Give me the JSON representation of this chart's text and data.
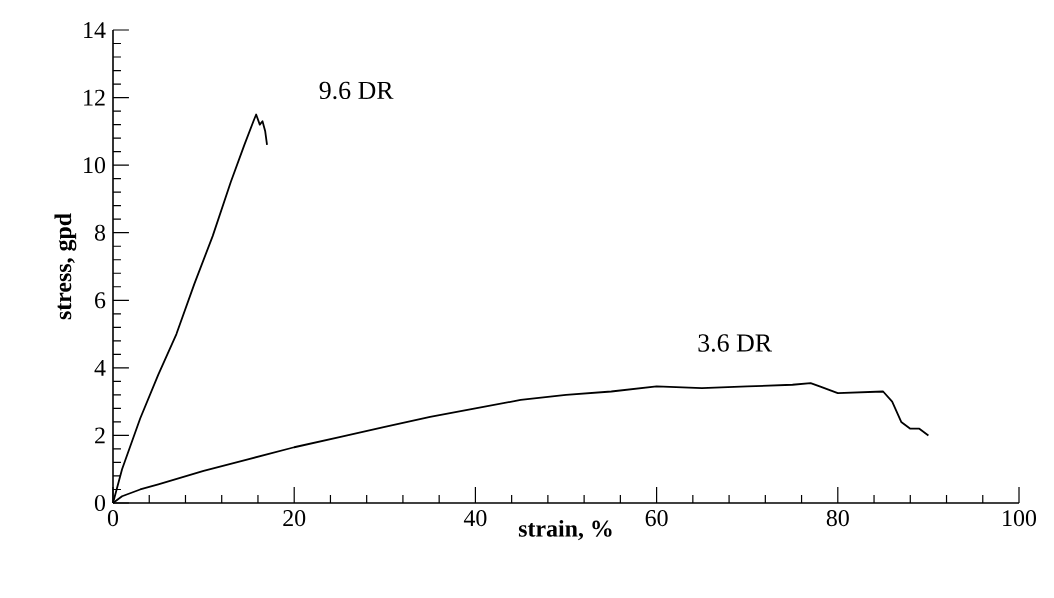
{
  "chart_data": {
    "type": "line",
    "xlabel": "strain, %",
    "ylabel": "stress, gpd",
    "xlim": [
      0,
      100
    ],
    "ylim": [
      0,
      14
    ],
    "xticks": [
      0,
      20,
      40,
      60,
      80,
      100
    ],
    "yticks": [
      0,
      2,
      4,
      6,
      8,
      10,
      12,
      14
    ],
    "grid": false,
    "marker": "none",
    "line_style": "solid",
    "series": [
      {
        "name": "9.6 DR",
        "color": "#000000",
        "x": [
          0,
          1,
          3,
          5,
          7,
          9,
          11,
          13,
          14.5,
          15.5,
          15.8,
          16.2,
          16.5,
          16.8,
          17
        ],
        "values": [
          0,
          1,
          2.5,
          3.8,
          5.0,
          6.5,
          7.9,
          9.5,
          10.6,
          11.3,
          11.5,
          11.2,
          11.3,
          11.0,
          10.6
        ]
      },
      {
        "name": "3.6 DR",
        "color": "#000000",
        "x": [
          0,
          1,
          3,
          5,
          10,
          15,
          20,
          25,
          30,
          35,
          40,
          45,
          50,
          55,
          60,
          65,
          70,
          75,
          77,
          78,
          80,
          85,
          86,
          87,
          88,
          89,
          90
        ],
        "values": [
          0,
          0.2,
          0.4,
          0.55,
          0.95,
          1.3,
          1.65,
          1.95,
          2.25,
          2.55,
          2.8,
          3.05,
          3.2,
          3.3,
          3.45,
          3.4,
          3.45,
          3.5,
          3.55,
          3.45,
          3.25,
          3.3,
          3.0,
          2.4,
          2.2,
          2.2,
          2.0
        ]
      }
    ]
  }
}
